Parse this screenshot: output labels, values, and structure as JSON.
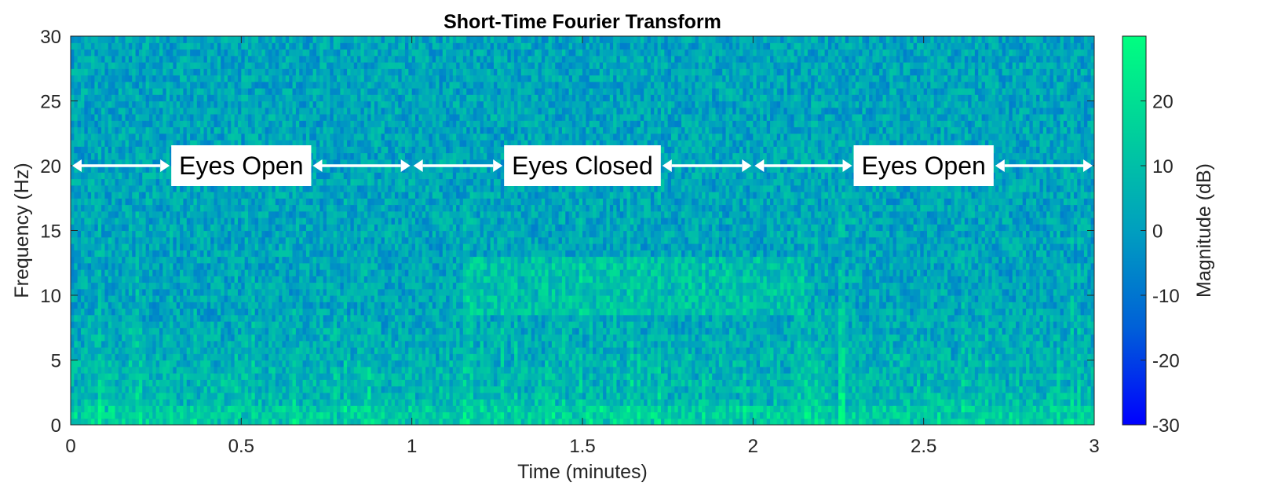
{
  "chart_data": {
    "type": "heatmap",
    "title": "Short-Time Fourier Transform",
    "xlabel": "Time (minutes)",
    "ylabel": "Frequency (Hz)",
    "xlim": [
      0,
      3
    ],
    "ylim": [
      0,
      30
    ],
    "x_ticks": [
      0,
      0.5,
      1,
      1.5,
      2,
      2.5,
      3
    ],
    "x_tick_labels": [
      "0",
      "0.5",
      "1",
      "1.5",
      "2",
      "2.5",
      "3"
    ],
    "y_ticks": [
      0,
      5,
      10,
      15,
      20,
      25,
      30
    ],
    "y_tick_labels": [
      "0",
      "5",
      "10",
      "15",
      "20",
      "25",
      "30"
    ],
    "colorbar": {
      "label": "Magnitude (dB)",
      "range": [
        -30,
        30
      ],
      "ticks": [
        -30,
        -20,
        -10,
        0,
        10,
        20
      ],
      "tick_labels": [
        "-30",
        "-20",
        "-10",
        "0",
        "10",
        "20"
      ],
      "colormap": [
        "#0000ff",
        "#0060d8",
        "#009fbf",
        "#00cf9c",
        "#00ff80"
      ]
    },
    "annotations": [
      {
        "label": "Eyes Open",
        "x_start": 0,
        "x_end": 1,
        "y": 20
      },
      {
        "label": "Eyes Closed",
        "x_start": 1,
        "x_end": 2,
        "y": 20
      },
      {
        "label": "Eyes Open",
        "x_start": 2,
        "x_end": 3,
        "y": 20
      }
    ],
    "grid": false,
    "legend": "none"
  }
}
